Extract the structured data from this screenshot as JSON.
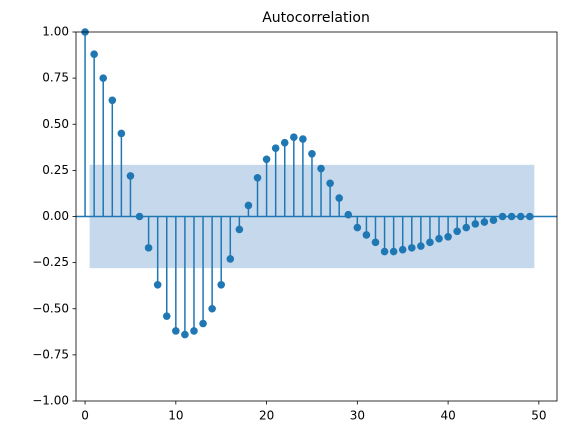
{
  "chart_data": {
    "type": "stem",
    "title": "Autocorrelation",
    "x": [
      0,
      1,
      2,
      3,
      4,
      5,
      6,
      7,
      8,
      9,
      10,
      11,
      12,
      13,
      14,
      15,
      16,
      17,
      18,
      19,
      20,
      21,
      22,
      23,
      24,
      25,
      26,
      27,
      28,
      29,
      30,
      31,
      32,
      33,
      34,
      35,
      36,
      37,
      38,
      39,
      40,
      41,
      42,
      43,
      44,
      45,
      46,
      47,
      48,
      49
    ],
    "values": [
      1.0,
      0.88,
      0.75,
      0.63,
      0.45,
      0.22,
      0.0,
      -0.17,
      -0.37,
      -0.54,
      -0.62,
      -0.64,
      -0.62,
      -0.58,
      -0.5,
      -0.37,
      -0.23,
      -0.07,
      0.06,
      0.21,
      0.31,
      0.37,
      0.4,
      0.43,
      0.42,
      0.34,
      0.26,
      0.18,
      0.1,
      0.01,
      -0.06,
      -0.1,
      -0.14,
      -0.19,
      -0.19,
      -0.18,
      -0.17,
      -0.16,
      -0.14,
      -0.12,
      -0.11,
      -0.08,
      -0.06,
      -0.04,
      -0.03,
      -0.02,
      0.0,
      0.0,
      0.0,
      0.0
    ],
    "color": "#1f77b4",
    "confidence_band": {
      "x": [
        0.5,
        49.5
      ],
      "lower": -0.28,
      "upper": 0.28,
      "color": "#c6d9ec"
    },
    "xlim": [
      -1,
      52
    ],
    "ylim": [
      -1,
      1
    ],
    "xticks": [
      0,
      10,
      20,
      30,
      40,
      50
    ],
    "yticks": [
      {
        "value": -1,
        "label": "−1.00"
      },
      {
        "value": -0.75,
        "label": "−0.75"
      },
      {
        "value": -0.5,
        "label": "−0.50"
      },
      {
        "value": -0.25,
        "label": "−0.25"
      },
      {
        "value": 0,
        "label": "0.00"
      },
      {
        "value": 0.25,
        "label": "0.25"
      },
      {
        "value": 0.5,
        "label": "0.50"
      },
      {
        "value": 0.75,
        "label": "0.75"
      },
      {
        "value": 1,
        "label": "1.00"
      }
    ],
    "grid": false
  }
}
